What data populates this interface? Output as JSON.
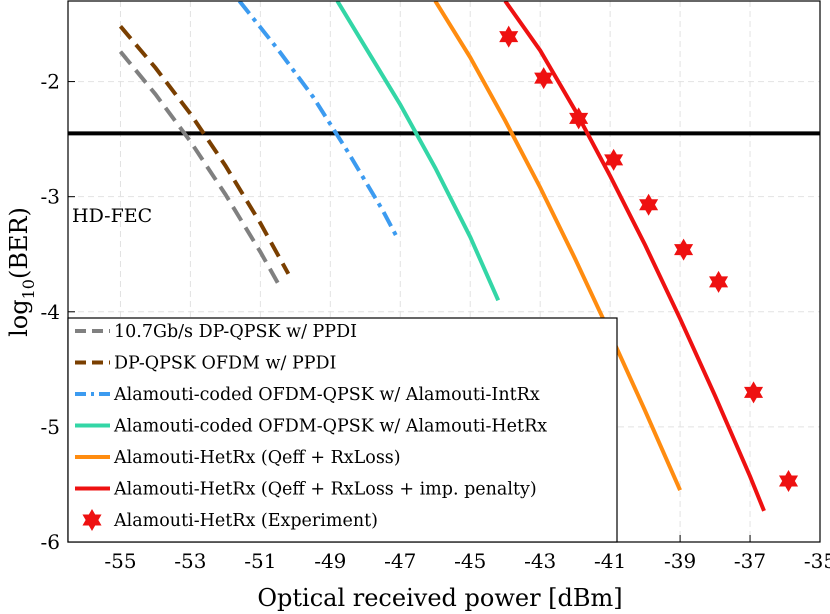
{
  "chart_data": {
    "type": "line",
    "title": "",
    "xlabel": "Optical received power [dBm]",
    "ylabel": "log10(BER)",
    "ylabel_base": "log",
    "ylabel_sub": "10",
    "ylabel_arg": "(BER)",
    "xlim": [
      -56.5,
      -35
    ],
    "ylim": [
      -6,
      -1.3
    ],
    "xticks": [
      -55,
      -53,
      -51,
      -49,
      -47,
      -45,
      -43,
      -41,
      -39,
      -37,
      -35
    ],
    "xtick_labels": [
      "-55",
      "-53",
      "-51",
      "-49",
      "-47",
      "-45",
      "-43",
      "-41",
      "-39",
      "-37",
      "-35"
    ],
    "yticks": [
      -6,
      -5,
      -4,
      -3,
      -2
    ],
    "ytick_labels": [
      "-6",
      "-5",
      "-4",
      "-3",
      "-2"
    ],
    "grid": true,
    "legend_position": "bottom-left",
    "threshold": {
      "label": "HD-FEC",
      "y": -2.45,
      "color": "#000000"
    },
    "series": [
      {
        "name": "10.7Gb/s DP-QPSK w/ PPDI",
        "color": "#808080",
        "style": "dashed",
        "x": [
          -55.0,
          -54.0,
          -53.0,
          -52.0,
          -51.0,
          -50.5
        ],
        "y": [
          -1.74,
          -2.11,
          -2.52,
          -2.98,
          -3.48,
          -3.75
        ]
      },
      {
        "name": "DP-QPSK OFDM w/ PPDI",
        "color": "#7a3f00",
        "style": "dashed",
        "x": [
          -55.0,
          -54.0,
          -53.0,
          -52.0,
          -51.0,
          -50.2
        ],
        "y": [
          -1.52,
          -1.88,
          -2.28,
          -2.73,
          -3.23,
          -3.67
        ]
      },
      {
        "name": "Alamouti-coded OFDM-QPSK w/ Alamouti-IntRx",
        "color": "#3c9bf0",
        "style": "dashdot",
        "x": [
          -51.6,
          -50.5,
          -49.5,
          -48.5,
          -47.5,
          -47.1
        ],
        "y": [
          -1.3,
          -1.72,
          -2.13,
          -2.61,
          -3.12,
          -3.35
        ]
      },
      {
        "name": "Alamouti-coded OFDM-QPSK w/ Alamouti-HetRx",
        "color": "#33d6a6",
        "style": "solid",
        "x": [
          -48.8,
          -48.0,
          -47.0,
          -46.0,
          -45.0,
          -44.2
        ],
        "y": [
          -1.3,
          -1.7,
          -2.2,
          -2.75,
          -3.35,
          -3.9
        ]
      },
      {
        "name": "Alamouti-HetRx (Qeff + RxLoss)",
        "color": "#ff8c10",
        "style": "solid",
        "x": [
          -46.0,
          -45.0,
          -44.0,
          -43.0,
          -42.0,
          -41.0,
          -40.0,
          -39.0
        ],
        "y": [
          -1.3,
          -1.79,
          -2.34,
          -2.92,
          -3.54,
          -4.19,
          -4.86,
          -5.55
        ]
      },
      {
        "name": "Alamouti-HetRx (Qeff + RxLoss + imp. penalty)",
        "color": "#ee1111",
        "style": "solid",
        "x": [
          -44.0,
          -43.0,
          -42.0,
          -41.0,
          -40.0,
          -39.0,
          -38.0,
          -37.0,
          -36.6
        ],
        "y": [
          -1.3,
          -1.73,
          -2.25,
          -2.82,
          -3.42,
          -4.06,
          -4.73,
          -5.43,
          -5.73
        ]
      },
      {
        "name": "Alamouti-HetRx (Experiment)",
        "color": "#ee1111",
        "style": "markers",
        "marker": "hexagram",
        "x": [
          -43.9,
          -42.9,
          -41.9,
          -40.9,
          -39.9,
          -38.9,
          -37.9,
          -36.9,
          -35.9
        ],
        "y": [
          -1.61,
          -1.97,
          -2.32,
          -2.68,
          -3.07,
          -3.46,
          -3.74,
          -4.7,
          -5.47
        ]
      }
    ]
  }
}
